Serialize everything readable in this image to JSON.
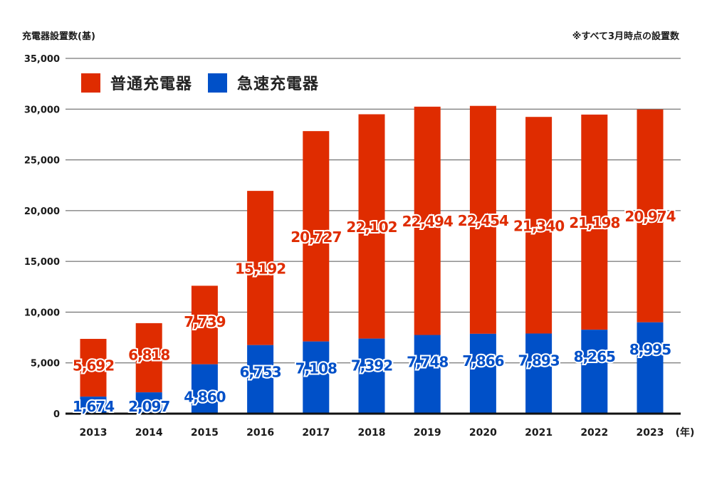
{
  "chart_data": {
    "type": "bar",
    "stacked": true,
    "title": "",
    "ylabel": "充電器設置数(基)",
    "xlabel": "(年)",
    "note": "※すべて3月時点の設置数",
    "categories": [
      "2013",
      "2014",
      "2015",
      "2016",
      "2017",
      "2018",
      "2019",
      "2020",
      "2021",
      "2022",
      "2023"
    ],
    "series": [
      {
        "name": "急速充電器",
        "color": "#0050c8",
        "values": [
          1674,
          2097,
          4860,
          6753,
          7108,
          7392,
          7748,
          7866,
          7893,
          8265,
          8995
        ]
      },
      {
        "name": "普通充電器",
        "color": "#df2c00",
        "values": [
          5692,
          6818,
          7739,
          15192,
          20727,
          22102,
          22494,
          22454,
          21340,
          21198,
          20974
        ]
      }
    ],
    "value_labels": {
      "急速充電器": [
        "1,674",
        "2,097",
        "4,860",
        "6,753",
        "7,108",
        "7,392",
        "7,748",
        "7,866",
        "7,893",
        "8,265",
        "8,995"
      ],
      "普通充電器": [
        "5,692",
        "6,818",
        "7,739",
        "15,192",
        "20,727",
        "22,102",
        "22,494",
        "22,454",
        "21,340",
        "21,198",
        "20,974"
      ]
    },
    "ylim": [
      0,
      35000
    ],
    "yticks": [
      0,
      5000,
      10000,
      15000,
      20000,
      25000,
      30000,
      35000
    ],
    "ytick_labels": [
      "0",
      "5,000",
      "10,000",
      "15,000",
      "20,000",
      "25,000",
      "30,000",
      "35,000"
    ],
    "grid": true,
    "legend_position": "top-left",
    "legend": [
      "普通充電器",
      "急速充電器"
    ]
  }
}
